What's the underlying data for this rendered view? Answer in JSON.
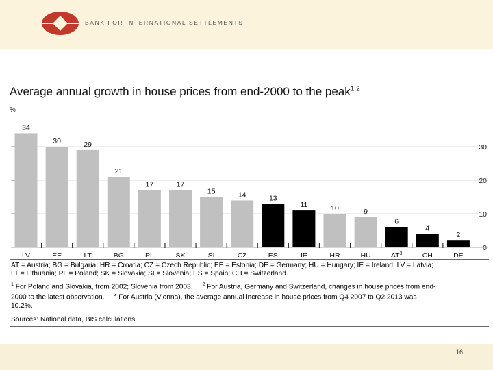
{
  "header": {
    "bank_name": "BANK FOR INTERNATIONAL SETTLEMENTS",
    "logo_color": "#c0392b"
  },
  "chart_data": {
    "type": "bar",
    "title": "Average annual growth in house prices from end-2000 to the peak",
    "title_sup": "1,2",
    "ylabel": "%",
    "ylim": [
      0,
      36
    ],
    "yticks": [
      "0",
      "10",
      "20",
      "30"
    ],
    "categories": [
      "LV",
      "EE",
      "LT",
      "BG",
      "PL",
      "SK",
      "SI",
      "CZ",
      "ES",
      "IE",
      "HR",
      "HU",
      "AT",
      "CH",
      "DE"
    ],
    "category_sups": [
      "",
      "",
      "",
      "",
      "",
      "",
      "",
      "",
      "",
      "",
      "",
      "",
      "3",
      "",
      ""
    ],
    "values": [
      34,
      30,
      29,
      21,
      17,
      17,
      15,
      14,
      13,
      11,
      10,
      9,
      6,
      4,
      2
    ],
    "value_labels": [
      "34",
      "30",
      "29",
      "21",
      "17",
      "17",
      "15",
      "14",
      "13",
      "11",
      "10",
      "9",
      "6",
      "4",
      "2"
    ],
    "bar_colors": [
      "#c0c0c0",
      "#c0c0c0",
      "#c0c0c0",
      "#c0c0c0",
      "#c0c0c0",
      "#c0c0c0",
      "#c0c0c0",
      "#c0c0c0",
      "#000000",
      "#000000",
      "#c0c0c0",
      "#c0c0c0",
      "#000000",
      "#000000",
      "#000000"
    ]
  },
  "notes": {
    "legend_line1": "AT = Austria; BG = Bulgaria; HR = Croatia; CZ = Czech Republic; EE = Estonia; DE = Germany; HU = Hungary; IE = Ireland; LV = Latvia;",
    "legend_line2": "LT = Lithuania; PL = Poland; SK = Slovakia; SI = Slovenia; ES = Spain; CH = Switzerland.",
    "fn1_num": "1",
    "fn1_text": "For Poland and Slovakia, from 2002; Slovenia from 2003.",
    "fn2_num": "2",
    "fn2_text_a": "For Austria, Germany and Switzerland, changes in house prices from end-",
    "fn2_text_b": "2000 to the latest observation.",
    "fn3_num": "3",
    "fn3_text_a": "For Austria (Vienna), the average annual increase in house prices from Q4 2007 to Q2 2013 was",
    "fn3_text_b": "10.2%.",
    "sources": "Sources: National data, BIS calculations."
  },
  "page_number": "16"
}
